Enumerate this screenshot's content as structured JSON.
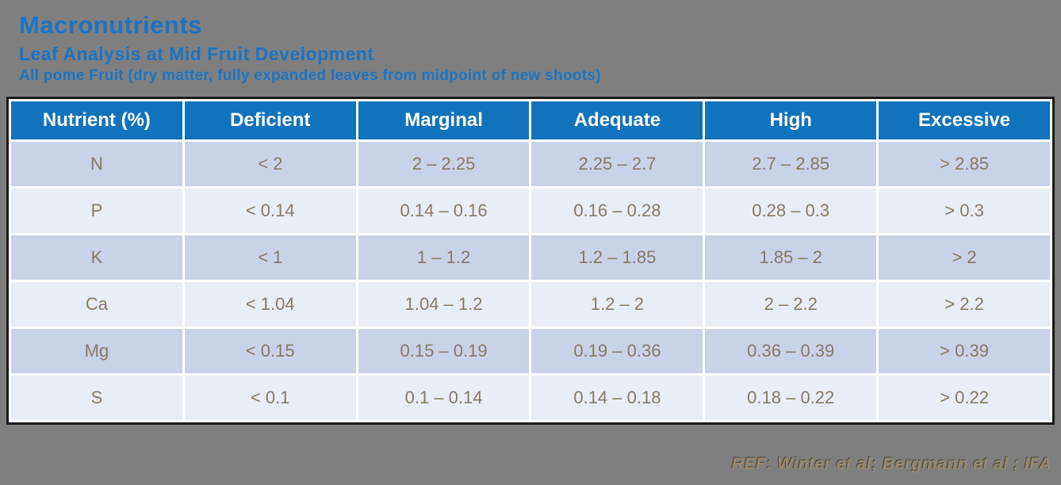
{
  "page": {
    "background_color": "#7f7f7f",
    "accent_blue": "#1173bc",
    "title_blue": "#1b74c4",
    "row_color_dark": "#c9d2e7",
    "row_color_light": "#e9edf5",
    "cell_text_color": "#8a7a66",
    "footer_text_color": "#99896f"
  },
  "header": {
    "title": "Macronutrients",
    "subtitle": "Leaf Analysis at Mid Fruit Development",
    "description": "All pome Fruit (dry matter, fully expanded leaves from midpoint of new shoots)"
  },
  "table": {
    "columns": [
      "Nutrient (%)",
      "Deficient",
      "Marginal",
      "Adequate",
      "High",
      "Excessive"
    ],
    "rows": [
      [
        "N",
        "< 2",
        "2 – 2.25",
        "2.25 – 2.7",
        "2.7 – 2.85",
        "> 2.85"
      ],
      [
        "P",
        "< 0.14",
        "0.14 – 0.16",
        "0.16 – 0.28",
        "0.28 – 0.3",
        "> 0.3"
      ],
      [
        "K",
        "< 1",
        "1 – 1.2",
        "1.2 – 1.85",
        "1.85 – 2",
        "> 2"
      ],
      [
        "Ca",
        "< 1.04",
        "1.04 – 1.2",
        "1.2 – 2",
        "2 – 2.2",
        "> 2.2"
      ],
      [
        "Mg",
        "< 0.15",
        "0.15 – 0.19",
        "0.19 – 0.36",
        "0.36 – 0.39",
        "> 0.39"
      ],
      [
        "S",
        "< 0.1",
        "0.1 – 0.14",
        "0.14 – 0.18",
        "0.18 – 0.22",
        "> 0.22"
      ]
    ]
  },
  "footer": {
    "reference": "REF: Winter et al; Bergmann et al ; IFA"
  },
  "chart_data": {
    "type": "table",
    "title": "Macronutrients — Leaf Analysis at Mid Fruit Development",
    "subtitle": "All pome Fruit (dry matter, fully expanded leaves from midpoint of new shoots)",
    "columns": [
      "Nutrient (%)",
      "Deficient",
      "Marginal",
      "Adequate",
      "High",
      "Excessive"
    ],
    "rows": [
      [
        "N",
        "< 2",
        "2 – 2.25",
        "2.25 – 2.7",
        "2.7 – 2.85",
        "> 2.85"
      ],
      [
        "P",
        "< 0.14",
        "0.14 – 0.16",
        "0.16 – 0.28",
        "0.28 – 0.3",
        "> 0.3"
      ],
      [
        "K",
        "< 1",
        "1 – 1.2",
        "1.2 – 1.85",
        "1.85 – 2",
        "> 2"
      ],
      [
        "Ca",
        "< 1.04",
        "1.04 – 1.2",
        "1.2 – 2",
        "2 – 2.2",
        "> 2.2"
      ],
      [
        "Mg",
        "< 0.15",
        "0.15 – 0.19",
        "0.19 – 0.36",
        "0.36 – 0.39",
        "> 0.39"
      ],
      [
        "S",
        "< 0.1",
        "0.1 – 0.14",
        "0.14 – 0.18",
        "0.18 – 0.22",
        "> 0.22"
      ]
    ],
    "source": "REF: Winter et al; Bergmann et al ; IFA"
  }
}
